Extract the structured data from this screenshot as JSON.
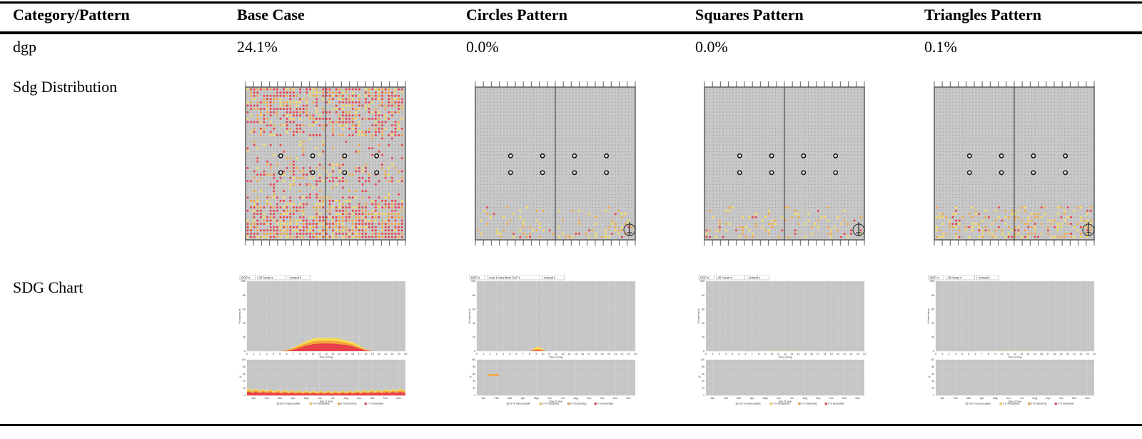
{
  "table": {
    "headers": [
      "Category/Pattern",
      "Base Case",
      "Circles Pattern",
      "Squares Pattern",
      "Triangles Pattern"
    ],
    "rows": {
      "dgp": {
        "label": "dgp",
        "values": [
          "24.1%",
          "0.0%",
          "0.0%",
          "0.1%"
        ]
      },
      "distribution": {
        "label": "Sdg Distribution"
      },
      "chart": {
        "label": "SDG Chart"
      }
    }
  },
  "charts": [
    {
      "dropdowns": [
        "DGP ▾",
        "All Areas ▾",
        "Annual ▾"
      ],
      "legend": [
        "63 % Imperceptible",
        "4 % Perceptible",
        "6 % Disturbing",
        "7 % Intolerable"
      ]
    },
    {
      "dropdowns": [
        "DGP ▾",
        "Area 1 Area from OLF ▾",
        "Annual ▾"
      ],
      "legend": [
        "99 % Imperceptible",
        "0 % Perceptible",
        "0 % Disturbing",
        "0 % Intolerable"
      ]
    },
    {
      "dropdowns": [
        "DGP ▾",
        "All Areas ▾",
        "Annual ▾"
      ],
      "legend": [
        "100 % Imperceptible",
        "0 % Perceptible",
        "0 % Disturbing",
        "0 % Intolerable"
      ]
    },
    {
      "dropdowns": [
        "DGP ▾",
        "All Areas ▾",
        "Annual ▾"
      ],
      "legend": [
        "100 % Imperceptible",
        "0 % Perceptible",
        "0 % Disturbing",
        "0 % Intolerable"
      ]
    }
  ],
  "chart_axes": {
    "y_ticks": [
      "0",
      "20",
      "40",
      "60",
      "80",
      "100"
    ],
    "y_label": "% total hours",
    "x_ticks": [
      "0",
      "1",
      "2",
      "3",
      "4",
      "5",
      "6",
      "7",
      "8",
      "9",
      "10",
      "11",
      "12",
      "13",
      "14",
      "15",
      "16",
      "17",
      "18",
      "19",
      "20",
      "21",
      "22",
      "23",
      "24"
    ],
    "x_label": "Time of Day",
    "month_ticks": [
      "Jan",
      "Feb",
      "Mar",
      "Apr",
      "May",
      "Jun",
      "Jul",
      "Aug",
      "Sep",
      "Oct",
      "Nov",
      "Dec"
    ],
    "month_label": "Day of Year",
    "lower_y_label": "%",
    "lower_y_ticks": [
      "100",
      "80",
      "60",
      "40",
      "20",
      "0"
    ]
  },
  "chart_data": [
    {
      "type": "area",
      "x_label": "Time of Day",
      "y_label": "% total hours",
      "xlim": [
        0,
        24
      ],
      "ylim": [
        0,
        100
      ],
      "x": [
        5,
        6,
        7,
        8,
        9,
        10,
        11,
        12,
        13,
        14,
        15,
        16,
        17,
        18,
        19
      ],
      "series": [
        {
          "name": "Intolerable",
          "color": "#e8414a",
          "values": [
            0,
            0.5,
            2,
            5,
            8,
            10,
            11,
            11,
            11,
            10,
            9,
            7,
            4,
            1,
            0
          ]
        },
        {
          "name": "Disturbing",
          "color": "#f4a43c",
          "values": [
            0,
            0.5,
            2,
            3,
            3,
            4,
            4,
            4,
            4,
            4,
            3,
            3,
            2,
            1,
            0
          ]
        },
        {
          "name": "Perceptible",
          "color": "#f8dc52",
          "values": [
            0,
            0.5,
            1,
            2,
            3,
            4,
            4,
            4,
            4,
            4,
            3,
            3,
            2,
            0.5,
            0
          ]
        }
      ]
    },
    {
      "type": "area",
      "x_label": "Time of Day",
      "y_label": "% total hours",
      "xlim": [
        0,
        24
      ],
      "ylim": [
        0,
        100
      ],
      "x": [
        7,
        8,
        8.5,
        9,
        9.5,
        10,
        10.5,
        11
      ],
      "series": [
        {
          "name": "Intolerable",
          "color": "#e8414a",
          "values": [
            0,
            0,
            0.5,
            1,
            1,
            0.5,
            0,
            0
          ]
        },
        {
          "name": "Disturbing",
          "color": "#f4a43c",
          "values": [
            0,
            0,
            1,
            2,
            2,
            1,
            0,
            0
          ]
        },
        {
          "name": "Perceptible",
          "color": "#f8dc52",
          "values": [
            0,
            0,
            1,
            3,
            3,
            1,
            0,
            0
          ]
        }
      ]
    },
    {
      "type": "area",
      "x_label": "Time of Day",
      "y_label": "% total hours",
      "xlim": [
        0,
        24
      ],
      "ylim": [
        0,
        100
      ],
      "x": [
        8,
        10,
        12,
        14,
        16
      ],
      "series": [
        {
          "name": "Perceptible",
          "color": "#f8dc52",
          "values": [
            0,
            0.2,
            0.3,
            0.2,
            0
          ]
        }
      ]
    },
    {
      "type": "area",
      "x_label": "Time of Day",
      "y_label": "% total hours",
      "xlim": [
        0,
        24
      ],
      "ylim": [
        0,
        100
      ],
      "x": [
        8,
        10,
        12,
        14,
        16
      ],
      "series": [
        {
          "name": "Perceptible",
          "color": "#f8dc52",
          "values": [
            0,
            0.3,
            0.5,
            0.3,
            0
          ]
        }
      ]
    }
  ],
  "colors": {
    "imperceptible": "#c8c8c8",
    "perceptible": "#f8dc52",
    "disturbing": "#f4a43c",
    "intolerable": "#e8414a",
    "plot_bg": "#c6c6c6",
    "frame": "#5a5a5a"
  }
}
